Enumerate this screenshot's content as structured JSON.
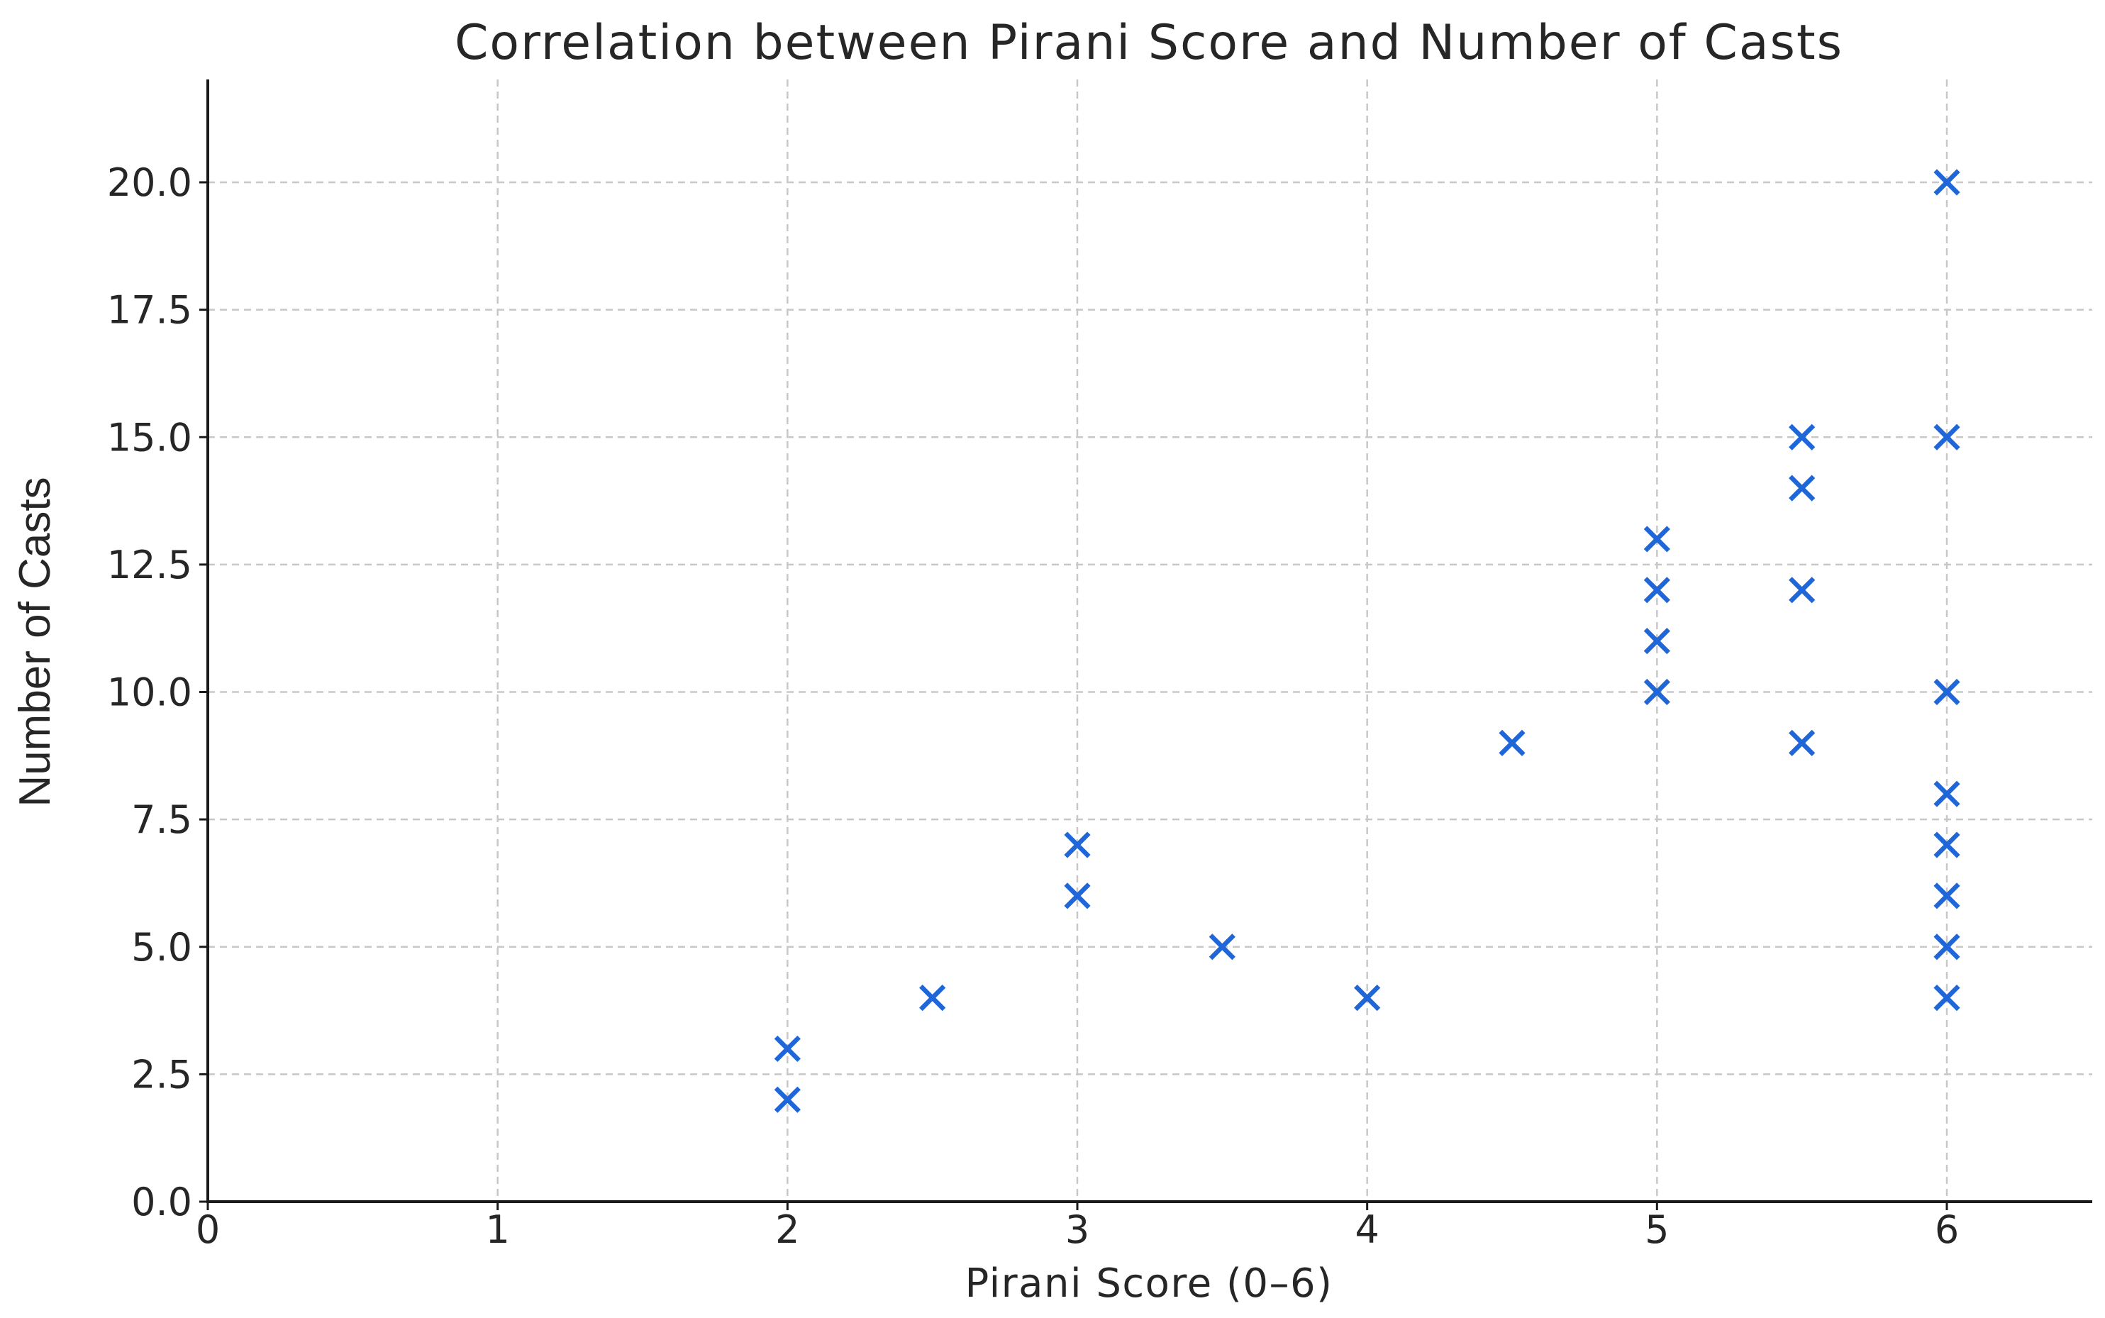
{
  "chart_data": {
    "type": "scatter",
    "title": "Correlation between Pirani Score and Number of Casts",
    "xlabel": "Pirani Score (0–6)",
    "ylabel": "Number of Casts",
    "xlim": [
      0,
      6.5
    ],
    "ylim": [
      0,
      22
    ],
    "x_ticks": [
      0,
      1,
      2,
      3,
      4,
      5,
      6
    ],
    "x_tick_labels": [
      "0",
      "1",
      "2",
      "3",
      "4",
      "5",
      "6"
    ],
    "y_ticks": [
      0,
      2.5,
      5,
      7.5,
      10,
      12.5,
      15,
      17.5,
      20
    ],
    "y_tick_labels": [
      "0.0",
      "2.5",
      "5.0",
      "7.5",
      "10.0",
      "12.5",
      "15.0",
      "17.5",
      "20.0"
    ],
    "grid": true,
    "marker": "x",
    "marker_color": "#1f66d9",
    "series": [
      {
        "points": [
          {
            "x": 2,
            "y": 2
          },
          {
            "x": 2,
            "y": 3
          },
          {
            "x": 2.5,
            "y": 4
          },
          {
            "x": 3,
            "y": 6
          },
          {
            "x": 3,
            "y": 7
          },
          {
            "x": 3.5,
            "y": 5
          },
          {
            "x": 4,
            "y": 4
          },
          {
            "x": 4.5,
            "y": 9
          },
          {
            "x": 5,
            "y": 10
          },
          {
            "x": 5,
            "y": 11
          },
          {
            "x": 5,
            "y": 12
          },
          {
            "x": 5,
            "y": 13
          },
          {
            "x": 5.5,
            "y": 9
          },
          {
            "x": 5.5,
            "y": 12
          },
          {
            "x": 5.5,
            "y": 14
          },
          {
            "x": 5.5,
            "y": 15
          },
          {
            "x": 6,
            "y": 4
          },
          {
            "x": 6,
            "y": 5
          },
          {
            "x": 6,
            "y": 6
          },
          {
            "x": 6,
            "y": 7
          },
          {
            "x": 6,
            "y": 8
          },
          {
            "x": 6,
            "y": 10
          },
          {
            "x": 6,
            "y": 15
          },
          {
            "x": 6,
            "y": 20
          }
        ]
      }
    ]
  }
}
